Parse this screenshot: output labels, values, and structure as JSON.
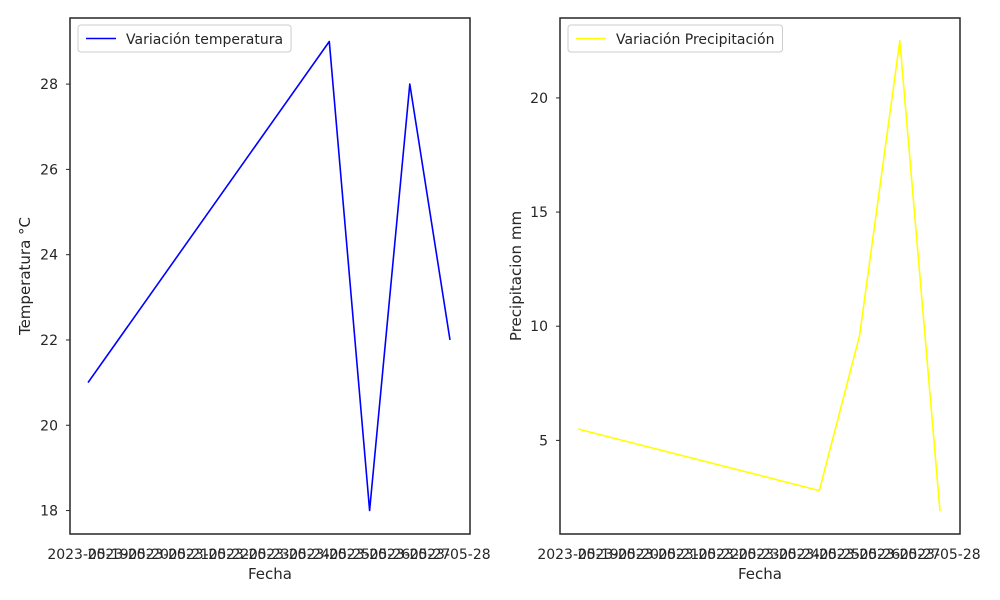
{
  "chart_data": [
    {
      "type": "line",
      "x": [
        "2023-05-19",
        "2023-05-20",
        "2023-05-21",
        "2023-05-22",
        "2023-05-23",
        "2023-05-24",
        "2023-05-25",
        "2023-05-26",
        "2023-05-27",
        "2023-05-28"
      ],
      "xticks": [
        "2023-05-19",
        "2023-05-20",
        "2023-05-21",
        "2023-05-22",
        "2023-05-23",
        "2023-05-24",
        "2023-05-25",
        "2023-05-26",
        "2023-05-27",
        "2023-05-28"
      ],
      "series": [
        {
          "name": "Variación temperatura",
          "color": "#0000ff",
          "points": [
            {
              "x": "2023-05-19",
              "y": 21
            },
            {
              "x": "2023-05-25",
              "y": 29
            },
            {
              "x": "2023-05-26",
              "y": 18
            },
            {
              "x": "2023-05-27",
              "y": 28
            },
            {
              "x": "2023-05-28",
              "y": 22
            }
          ]
        }
      ],
      "xlabel": "Fecha",
      "ylabel": "Temperatura °C",
      "ylim": [
        17.45,
        29.55
      ],
      "yticks": [
        18,
        20,
        22,
        24,
        26,
        28
      ],
      "legend": "top-left",
      "grid": false
    },
    {
      "type": "line",
      "x": [
        "2023-05-19",
        "2023-05-20",
        "2023-05-21",
        "2023-05-22",
        "2023-05-23",
        "2023-05-24",
        "2023-05-25",
        "2023-05-26",
        "2023-05-27",
        "2023-05-28"
      ],
      "xticks": [
        "2023-05-19",
        "2023-05-20",
        "2023-05-21",
        "2023-05-22",
        "2023-05-23",
        "2023-05-24",
        "2023-05-25",
        "2023-05-26",
        "2023-05-27",
        "2023-05-28"
      ],
      "series": [
        {
          "name": "Variación Precipitación",
          "color": "#ffff00",
          "points": [
            {
              "x": "2023-05-19",
              "y": 5.5
            },
            {
              "x": "2023-05-25",
              "y": 2.8
            },
            {
              "x": "2023-05-26",
              "y": 9.6
            },
            {
              "x": "2023-05-27",
              "y": 22.5
            },
            {
              "x": "2023-05-28",
              "y": 1.9
            }
          ]
        }
      ],
      "xlabel": "Fecha",
      "ylabel": "Precipitacion mm",
      "ylim": [
        0.9,
        23.5
      ],
      "yticks": [
        5,
        10,
        15,
        20
      ],
      "legend": "top-left",
      "grid": false
    }
  ]
}
